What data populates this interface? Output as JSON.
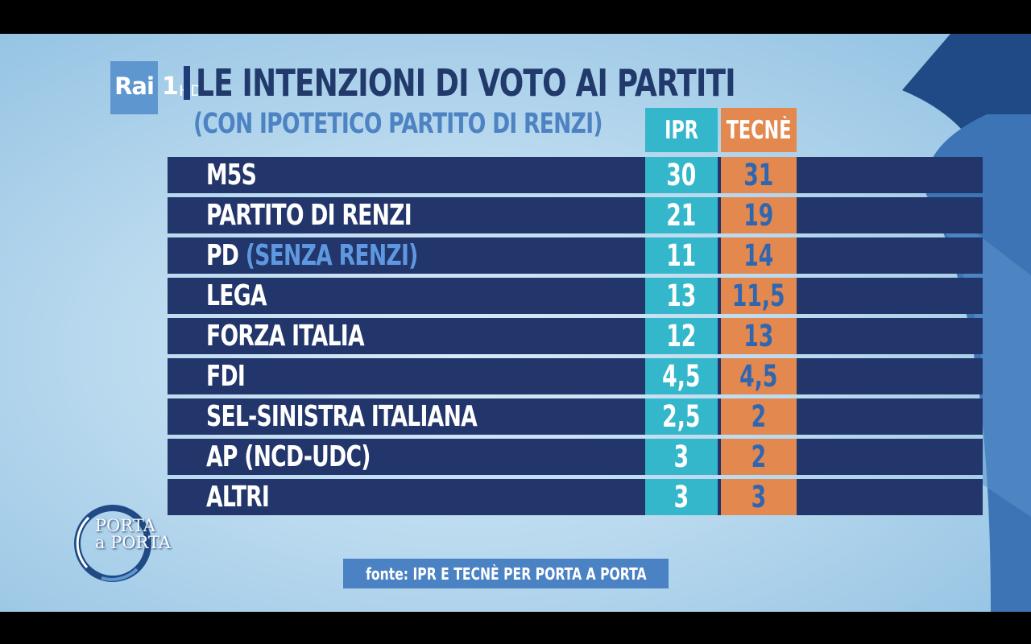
{
  "colors": {
    "row_bg": "#22366b",
    "ipr": "#34b7cb",
    "tecne": "#e3884f",
    "title": "#213a6b",
    "subtitle": "#4e83c3",
    "source_bg": "#4a82c4"
  },
  "broadcaster": {
    "logo_text": "Rai",
    "channel": "1",
    "hd": "HD"
  },
  "title": "LE INTENZIONI DI VOTO AI PARTITI",
  "subtitle": "(CON IPOTETICO PARTITO DI RENZI)",
  "columns": {
    "ipr": "IPR",
    "tecne": "TECNÈ"
  },
  "rows": [
    {
      "party": "M5S",
      "note": "",
      "ipr": "30",
      "tecne": "31"
    },
    {
      "party": "PARTITO DI RENZI",
      "note": "",
      "ipr": "21",
      "tecne": "19"
    },
    {
      "party": "PD",
      "note": "(SENZA RENZI)",
      "ipr": "11",
      "tecne": "14"
    },
    {
      "party": "LEGA",
      "note": "",
      "ipr": "13",
      "tecne": "11,5"
    },
    {
      "party": "FORZA ITALIA",
      "note": "",
      "ipr": "12",
      "tecne": "13"
    },
    {
      "party": "FDI",
      "note": "",
      "ipr": "4,5",
      "tecne": "4,5"
    },
    {
      "party": "SEL-SINISTRA ITALIANA",
      "note": "",
      "ipr": "2,5",
      "tecne": "2"
    },
    {
      "party": "AP (NCD-UDC)",
      "note": "",
      "ipr": "3",
      "tecne": "2"
    },
    {
      "party": "ALTRI",
      "note": "",
      "ipr": "3",
      "tecne": "3"
    }
  ],
  "show_logo": {
    "line1": "PORTA",
    "line2": "a PORTA"
  },
  "source": "fonte: IPR E TECNÈ PER PORTA A PORTA"
}
